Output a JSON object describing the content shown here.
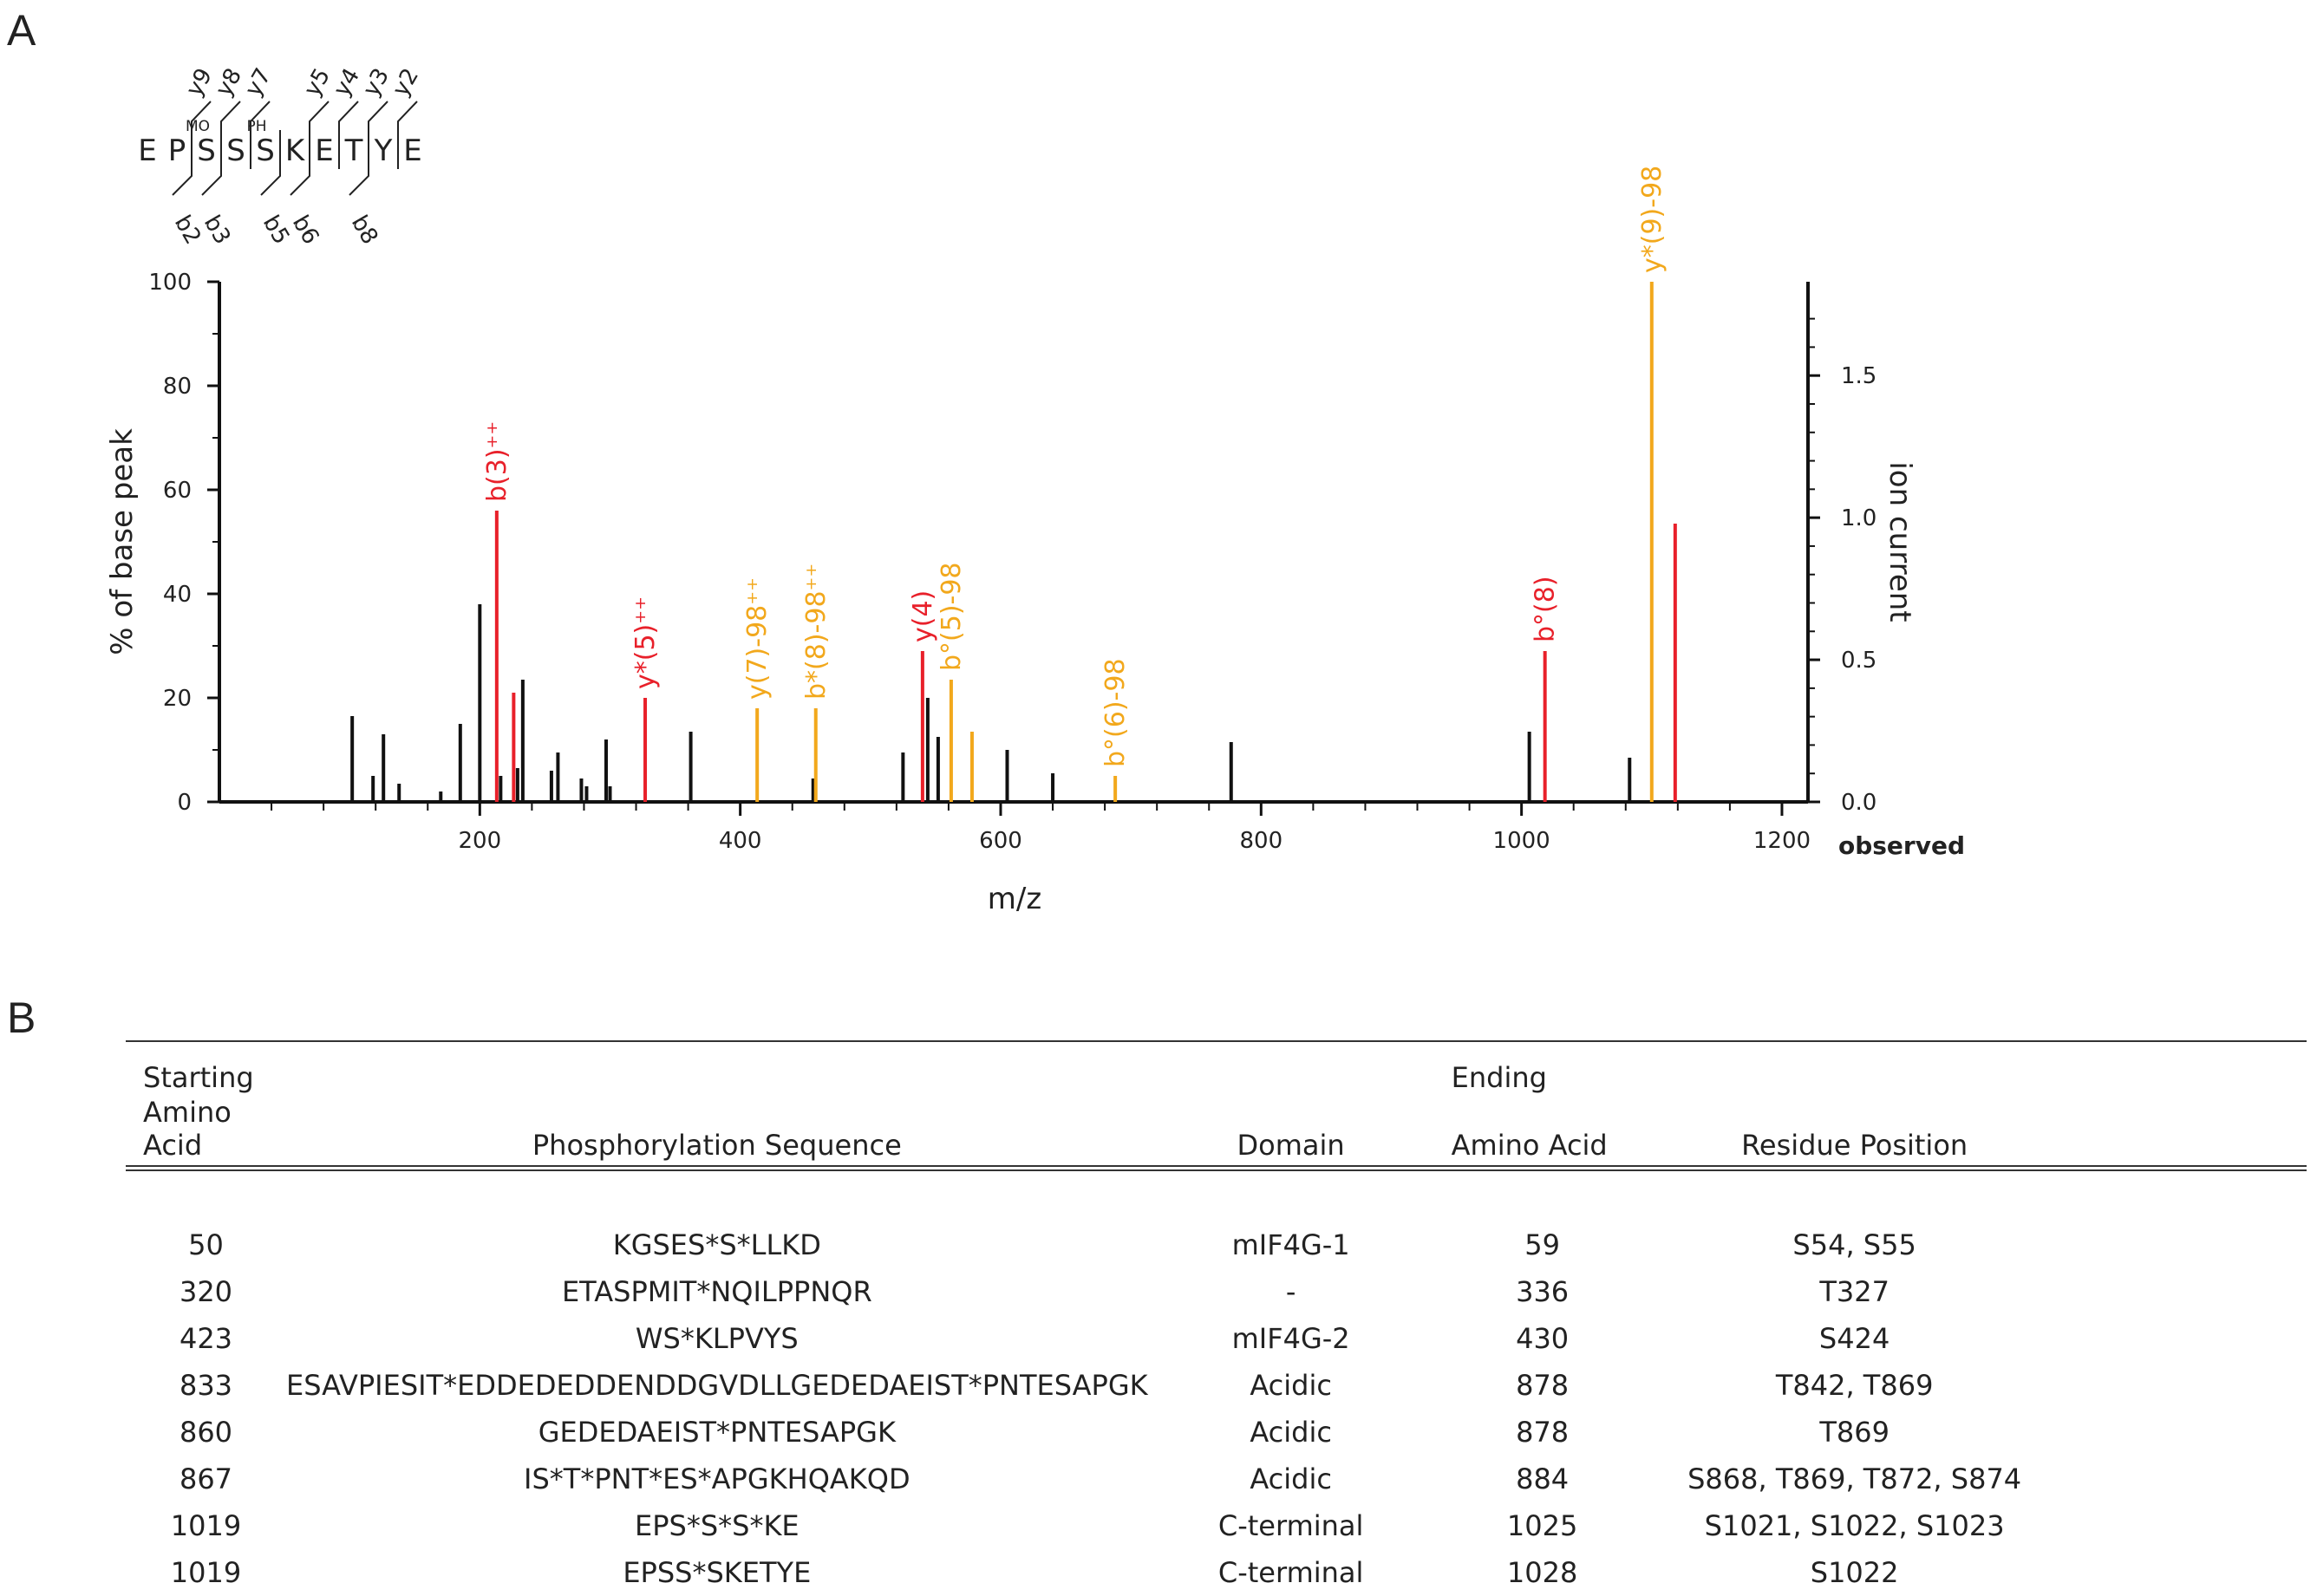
{
  "panel_labels": {
    "a": "A",
    "b": "B"
  },
  "peptide": {
    "residues": [
      "E",
      "P",
      "S",
      "S",
      "S",
      "K",
      "E",
      "T",
      "Y",
      "E"
    ],
    "modifications": [
      {
        "residue_index": 2,
        "label": "MO"
      },
      {
        "residue_index": 4,
        "label": "PH"
      }
    ],
    "y_ions": [
      {
        "label": "y9",
        "after": 1
      },
      {
        "label": "y8",
        "after": 2
      },
      {
        "label": "y7",
        "after": 3
      },
      {
        "label": "y5",
        "after": 5
      },
      {
        "label": "y4",
        "after": 6
      },
      {
        "label": "y3",
        "after": 7
      },
      {
        "label": "y2",
        "after": 8
      }
    ],
    "b_ions": [
      {
        "label": "b2",
        "after": 2
      },
      {
        "label": "b3",
        "after": 3
      },
      {
        "label": "b5",
        "after": 5
      },
      {
        "label": "b6",
        "after": 6
      },
      {
        "label": "b8",
        "after": 8
      }
    ]
  },
  "chart_data": {
    "type": "bar",
    "subtype": "mass-spectrum",
    "xlabel": "m/z",
    "ylabel": "% of base peak",
    "y2label": "ion current",
    "x_axis_note": "observed",
    "xlim": [
      0,
      1220
    ],
    "ylim": [
      0,
      100
    ],
    "y2lim": [
      0,
      1.83
    ],
    "xticks": [
      200,
      400,
      600,
      800,
      1000,
      1200
    ],
    "yticks": [
      0,
      20,
      40,
      60,
      80,
      100
    ],
    "y2ticks": [
      "0.0",
      "0.5",
      "1.0",
      "1.5"
    ],
    "colors": {
      "unassigned": "#111111",
      "b_y": "#e8202a",
      "neutral_loss": "#f2a81c"
    },
    "peaks": [
      {
        "mz": 102,
        "intensity": 16.5,
        "kind": "unassigned"
      },
      {
        "mz": 118,
        "intensity": 5,
        "kind": "unassigned"
      },
      {
        "mz": 126,
        "intensity": 13,
        "kind": "unassigned"
      },
      {
        "mz": 138,
        "intensity": 3.5,
        "kind": "unassigned"
      },
      {
        "mz": 170,
        "intensity": 2,
        "kind": "unassigned"
      },
      {
        "mz": 185,
        "intensity": 15,
        "kind": "unassigned"
      },
      {
        "mz": 200,
        "intensity": 38,
        "kind": "unassigned"
      },
      {
        "mz": 213,
        "intensity": 56,
        "kind": "b_y",
        "label": "b(3)⁺⁺"
      },
      {
        "mz": 216,
        "intensity": 5,
        "kind": "unassigned"
      },
      {
        "mz": 226,
        "intensity": 21,
        "kind": "b_y"
      },
      {
        "mz": 229,
        "intensity": 6.5,
        "kind": "unassigned"
      },
      {
        "mz": 233,
        "intensity": 23.5,
        "kind": "unassigned"
      },
      {
        "mz": 255,
        "intensity": 6,
        "kind": "unassigned"
      },
      {
        "mz": 260,
        "intensity": 9.5,
        "kind": "unassigned"
      },
      {
        "mz": 278,
        "intensity": 4.5,
        "kind": "unassigned"
      },
      {
        "mz": 282,
        "intensity": 3,
        "kind": "unassigned"
      },
      {
        "mz": 297,
        "intensity": 12,
        "kind": "unassigned"
      },
      {
        "mz": 300,
        "intensity": 3,
        "kind": "unassigned"
      },
      {
        "mz": 327,
        "intensity": 20,
        "kind": "b_y",
        "label": "y*(5)⁺⁺"
      },
      {
        "mz": 362,
        "intensity": 13.5,
        "kind": "unassigned"
      },
      {
        "mz": 413,
        "intensity": 18,
        "kind": "neutral_loss",
        "label": "y(7)-98⁺⁺"
      },
      {
        "mz": 456,
        "intensity": 4.5,
        "kind": "unassigned"
      },
      {
        "mz": 458,
        "intensity": 18,
        "kind": "neutral_loss",
        "label": "b*(8)-98⁺⁺"
      },
      {
        "mz": 525,
        "intensity": 9.5,
        "kind": "unassigned"
      },
      {
        "mz": 540,
        "intensity": 29,
        "kind": "b_y",
        "label": "y(4)"
      },
      {
        "mz": 544,
        "intensity": 20,
        "kind": "unassigned"
      },
      {
        "mz": 552,
        "intensity": 12.5,
        "kind": "unassigned"
      },
      {
        "mz": 562,
        "intensity": 23.5,
        "kind": "neutral_loss",
        "label": "b°(5)-98"
      },
      {
        "mz": 578,
        "intensity": 13.5,
        "kind": "neutral_loss"
      },
      {
        "mz": 605,
        "intensity": 10,
        "kind": "unassigned"
      },
      {
        "mz": 640,
        "intensity": 5.5,
        "kind": "unassigned"
      },
      {
        "mz": 688,
        "intensity": 5,
        "kind": "neutral_loss",
        "label": "b°(6)-98"
      },
      {
        "mz": 777,
        "intensity": 11.5,
        "kind": "unassigned"
      },
      {
        "mz": 1006,
        "intensity": 13.5,
        "kind": "unassigned"
      },
      {
        "mz": 1018,
        "intensity": 29,
        "kind": "b_y",
        "label": "b°(8)"
      },
      {
        "mz": 1083,
        "intensity": 8.5,
        "kind": "unassigned"
      },
      {
        "mz": 1100,
        "intensity": 100,
        "kind": "neutral_loss",
        "label": "y*(9)-98"
      },
      {
        "mz": 1118,
        "intensity": 53.5,
        "kind": "b_y"
      }
    ]
  },
  "table": {
    "headers": {
      "start_top": "Starting",
      "start_bottom": "Amino Acid",
      "sequence": "Phosphorylation Sequence",
      "domain": "Domain",
      "end_top": "Ending",
      "end_bottom": "Amino Acid",
      "residue": "Residue Position"
    },
    "rows": [
      {
        "start": "50",
        "sequence": "KGSES*S*LLKD",
        "domain": "mIF4G-1",
        "end": "59",
        "residue": "S54, S55"
      },
      {
        "start": "320",
        "sequence": "ETASPMIT*NQILPPNQR",
        "domain": "-",
        "end": "336",
        "residue": "T327"
      },
      {
        "start": "423",
        "sequence": "WS*KLPVYS",
        "domain": "mIF4G-2",
        "end": "430",
        "residue": "S424"
      },
      {
        "start": "833",
        "sequence": "ESAVPIESIT*EDDEDEDDENDDGVDLLGEDEDAEIST*PNTESAPGK",
        "domain": "Acidic",
        "end": "878",
        "residue": "T842, T869"
      },
      {
        "start": "860",
        "sequence": "GEDEDAEIST*PNTESAPGK",
        "domain": "Acidic",
        "end": "878",
        "residue": "T869"
      },
      {
        "start": "867",
        "sequence": "IS*T*PNT*ES*APGKHQAKQD",
        "domain": "Acidic",
        "end": "884",
        "residue": "S868, T869, T872, S874"
      },
      {
        "start": "1019",
        "sequence": "EPS*S*S*KE",
        "domain": "C-terminal",
        "end": "1025",
        "residue": "S1021, S1022, S1023"
      },
      {
        "start": "1019",
        "sequence": "EPSS*SKETYE",
        "domain": "C-terminal",
        "end": "1028",
        "residue": "S1022"
      }
    ]
  }
}
